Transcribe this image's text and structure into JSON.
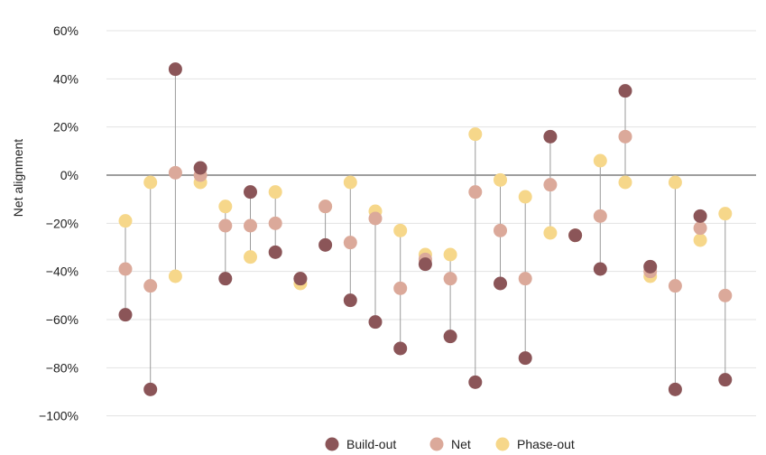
{
  "chart_data": {
    "type": "scatter",
    "ylabel": "Net alignment",
    "ylim": [
      -100,
      65
    ],
    "yticks": [
      60,
      40,
      20,
      0,
      -20,
      -40,
      -60,
      -80,
      -100
    ],
    "ytick_labels": [
      "60%",
      "40%",
      "20%",
      "0%",
      "−20%",
      "−40%",
      "−60%",
      "−80%",
      "−100%"
    ],
    "grid": true,
    "legend_position": "bottom",
    "series": [
      {
        "name": "Build-out",
        "color": "#8b5558",
        "values": [
          -58,
          -89,
          44,
          3,
          -43,
          -7,
          -32,
          -43,
          -29,
          -52,
          -61,
          -72,
          -37,
          -67,
          -86,
          -45,
          -76,
          16,
          -25,
          -39,
          35,
          -38,
          -89,
          -17,
          -85
        ]
      },
      {
        "name": "Net",
        "color": "#dba99a",
        "values": [
          -39,
          -46,
          1,
          0,
          -21,
          -21,
          -20,
          -43,
          -13,
          -28,
          -18,
          -47,
          -35,
          -43,
          -7,
          -23,
          -43,
          -4,
          -25,
          -17,
          16,
          -40,
          -46,
          -22,
          -50
        ]
      },
      {
        "name": "Phase-out",
        "color": "#f6d78a",
        "values": [
          -19,
          -3,
          -42,
          -3,
          -13,
          -34,
          -7,
          -45,
          -13,
          -3,
          -15,
          -23,
          -33,
          -33,
          17,
          -2,
          -9,
          -24,
          -25,
          6,
          -3,
          -42,
          -3,
          -27,
          -16
        ]
      }
    ]
  }
}
